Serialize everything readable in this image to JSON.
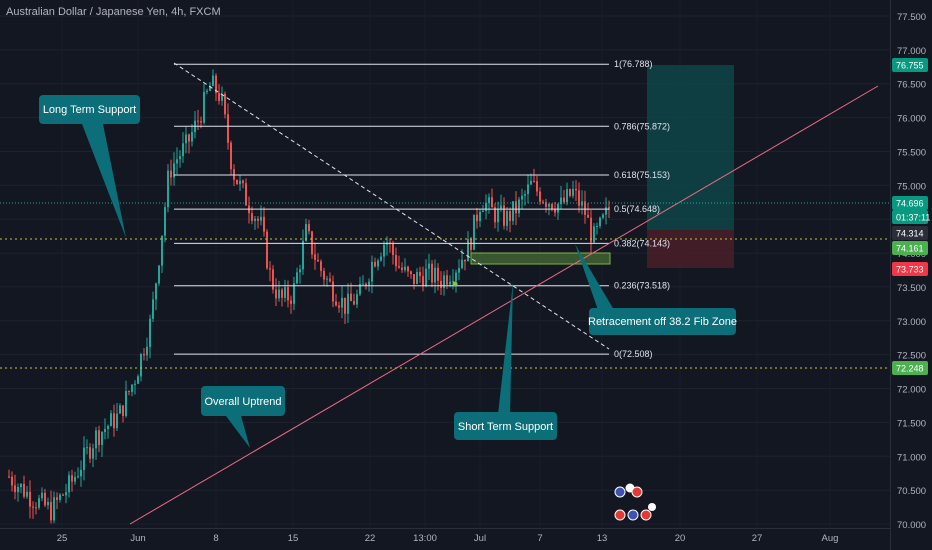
{
  "header": {
    "title": "Australian Dollar / Japanese Yen, 4h, FXCM"
  },
  "price_axis": {
    "ticks": [
      "77.500",
      "77.000",
      "76.500",
      "76.000",
      "75.500",
      "75.000",
      "74.500",
      "74.000",
      "73.500",
      "73.000",
      "72.500",
      "72.000",
      "71.500",
      "71.000",
      "70.500",
      "70.000"
    ],
    "badges": [
      {
        "text": "76.755",
        "color": "#089981"
      },
      {
        "text": "74.696",
        "color": "#089981"
      },
      {
        "text": "01:37:11",
        "color": "#089981"
      },
      {
        "text": "74.314",
        "color": "#2a2e39"
      },
      {
        "text": "74.161",
        "color": "#4caf50"
      },
      {
        "text": "73.733",
        "color": "#f23645"
      },
      {
        "text": "72.248",
        "color": "#4caf50"
      }
    ]
  },
  "time_axis": {
    "ticks": [
      "25",
      "Jun",
      "8",
      "15",
      "22",
      "13:00",
      "Jul",
      "7",
      "13",
      "20",
      "27",
      "Aug"
    ]
  },
  "fib_levels": [
    {
      "label": "1(76.788)",
      "value": 76.788
    },
    {
      "label": "0.786(75.872)",
      "value": 75.872
    },
    {
      "label": "0.618(75.153)",
      "value": 75.153
    },
    {
      "label": "0.5(74.648)",
      "value": 74.648
    },
    {
      "label": "0.382(74.143)",
      "value": 74.143
    },
    {
      "label": "0.236(73.518)",
      "value": 73.518
    },
    {
      "label": "0(72.508)",
      "value": 72.508
    }
  ],
  "callouts": [
    {
      "text": "Long Term Support"
    },
    {
      "text": "Overall Uptrend"
    },
    {
      "text": "Retracement off 38.2 Fib Zone"
    },
    {
      "text": "Short Term Support"
    }
  ],
  "colors": {
    "background": "#131722",
    "up": "#26a69a",
    "down": "#ef5350",
    "callout": "#0b6e78",
    "trendline": "#f06b85",
    "fib": "#e0e3eb"
  },
  "chart_data": {
    "type": "candlestick",
    "price_range": [
      69.9,
      77.8
    ],
    "key_prices": {
      "last": 74.696,
      "target": 76.755,
      "entry": 74.314,
      "support": 74.161,
      "stop": 73.733,
      "low_level": 72.248
    }
  }
}
